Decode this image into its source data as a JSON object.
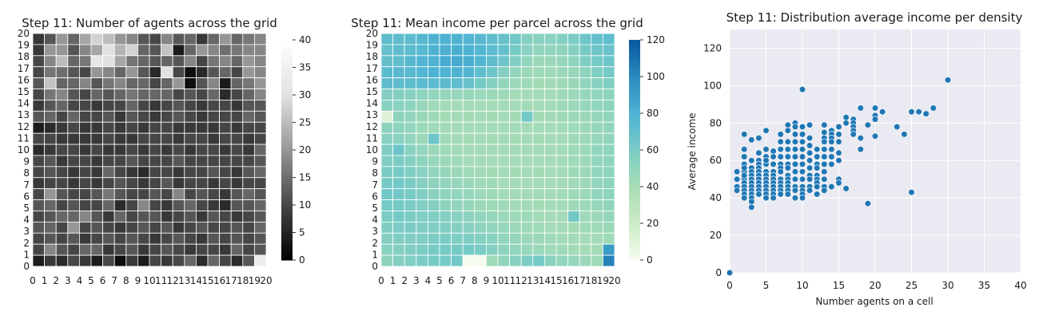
{
  "chart_data": [
    {
      "type": "heatmap",
      "title": "Step 11: Number of agents across the grid",
      "x_ticks": [
        "0",
        "1",
        "2",
        "3",
        "4",
        "5",
        "6",
        "7",
        "8",
        "9",
        "10",
        "11",
        "12",
        "13",
        "14",
        "15",
        "16",
        "17",
        "18",
        "19",
        "20"
      ],
      "y_ticks": [
        "0",
        "1",
        "2",
        "3",
        "4",
        "5",
        "6",
        "7",
        "8",
        "9",
        "10",
        "11",
        "12",
        "13",
        "14",
        "15",
        "16",
        "17",
        "18",
        "19",
        "20"
      ],
      "colormap": "greys",
      "colorbar_range": [
        0,
        40
      ],
      "colorbar_ticks": [
        "0",
        "5",
        "10",
        "15",
        "20",
        "25",
        "30",
        "35",
        "40"
      ],
      "rows_top_to_bottom": [
        [
          8,
          12,
          20,
          14,
          22,
          28,
          25,
          20,
          18,
          12,
          10,
          18,
          12,
          14,
          8,
          14,
          20,
          14,
          16,
          18
        ],
        [
          8,
          20,
          20,
          12,
          18,
          22,
          30,
          24,
          28,
          14,
          12,
          26,
          4,
          14,
          20,
          18,
          15,
          16,
          18,
          18
        ],
        [
          10,
          18,
          25,
          14,
          16,
          32,
          30,
          22,
          16,
          14,
          12,
          14,
          12,
          18,
          10,
          16,
          18,
          14,
          20,
          18
        ],
        [
          10,
          16,
          15,
          12,
          10,
          20,
          18,
          14,
          20,
          12,
          6,
          30,
          10,
          2,
          6,
          12,
          14,
          10,
          20,
          18
        ],
        [
          12,
          26,
          14,
          14,
          18,
          12,
          16,
          18,
          14,
          14,
          10,
          14,
          20,
          2,
          12,
          18,
          4,
          14,
          16,
          20
        ],
        [
          10,
          16,
          18,
          12,
          10,
          14,
          12,
          14,
          16,
          14,
          14,
          14,
          10,
          12,
          10,
          14,
          6,
          10,
          14,
          18
        ],
        [
          8,
          12,
          14,
          10,
          10,
          8,
          10,
          10,
          14,
          10,
          8,
          10,
          12,
          10,
          8,
          10,
          10,
          8,
          12,
          12
        ],
        [
          12,
          14,
          10,
          14,
          10,
          10,
          12,
          8,
          12,
          10,
          8,
          10,
          12,
          10,
          8,
          10,
          10,
          10,
          14,
          12
        ],
        [
          4,
          6,
          8,
          10,
          8,
          8,
          10,
          8,
          10,
          8,
          10,
          10,
          8,
          8,
          8,
          8,
          10,
          8,
          10,
          10
        ],
        [
          10,
          10,
          8,
          8,
          8,
          8,
          10,
          8,
          8,
          10,
          10,
          10,
          8,
          10,
          10,
          8,
          10,
          10,
          8,
          10
        ],
        [
          6,
          8,
          10,
          10,
          8,
          10,
          8,
          8,
          10,
          8,
          10,
          8,
          10,
          8,
          10,
          10,
          8,
          10,
          8,
          14
        ],
        [
          10,
          12,
          8,
          10,
          10,
          8,
          10,
          10,
          12,
          10,
          10,
          10,
          12,
          10,
          10,
          10,
          10,
          10,
          10,
          12
        ],
        [
          10,
          12,
          10,
          8,
          10,
          8,
          14,
          10,
          8,
          6,
          10,
          10,
          8,
          10,
          10,
          12,
          10,
          8,
          12,
          14
        ],
        [
          8,
          10,
          10,
          8,
          10,
          8,
          10,
          12,
          10,
          8,
          10,
          12,
          8,
          10,
          10,
          8,
          10,
          8,
          10,
          10
        ],
        [
          10,
          20,
          12,
          10,
          10,
          12,
          16,
          12,
          10,
          10,
          12,
          10,
          18,
          10,
          12,
          10,
          8,
          12,
          14,
          12
        ],
        [
          12,
          14,
          10,
          12,
          10,
          10,
          14,
          6,
          10,
          18,
          10,
          8,
          12,
          14,
          10,
          8,
          6,
          12,
          12,
          14
        ],
        [
          10,
          12,
          14,
          14,
          18,
          12,
          8,
          14,
          10,
          12,
          12,
          8,
          10,
          12,
          8,
          12,
          10,
          8,
          10,
          12
        ],
        [
          12,
          14,
          10,
          20,
          10,
          12,
          10,
          8,
          10,
          12,
          10,
          12,
          8,
          10,
          12,
          10,
          10,
          12,
          10,
          14
        ],
        [
          10,
          12,
          10,
          12,
          8,
          10,
          12,
          10,
          12,
          10,
          8,
          10,
          12,
          10,
          8,
          12,
          10,
          12,
          10,
          12
        ],
        [
          10,
          18,
          12,
          10,
          14,
          14,
          8,
          10,
          12,
          8,
          10,
          12,
          10,
          8,
          10,
          10,
          8,
          14,
          10,
          12
        ],
        [
          4,
          8,
          6,
          10,
          8,
          4,
          10,
          2,
          8,
          4,
          10,
          8,
          10,
          14,
          6,
          14,
          10,
          6,
          12,
          34
        ]
      ]
    },
    {
      "type": "heatmap",
      "title": "Step 11: Mean income per parcel across the grid",
      "x_ticks": [
        "0",
        "1",
        "2",
        "3",
        "4",
        "5",
        "6",
        "7",
        "8",
        "9",
        "10",
        "11",
        "12",
        "13",
        "14",
        "15",
        "16",
        "17",
        "18",
        "19",
        "20"
      ],
      "y_ticks": [
        "0",
        "1",
        "2",
        "3",
        "4",
        "5",
        "6",
        "7",
        "8",
        "9",
        "10",
        "11",
        "12",
        "13",
        "14",
        "15",
        "16",
        "17",
        "18",
        "19",
        "20"
      ],
      "colormap": "GnBu",
      "colorbar_range": [
        0,
        120
      ],
      "colorbar_ticks": [
        "0",
        "20",
        "40",
        "60",
        "80",
        "100",
        "120"
      ],
      "rows_top_to_bottom": [
        [
          72,
          72,
          74,
          76,
          80,
          80,
          80,
          78,
          76,
          72,
          70,
          64,
          56,
          54,
          54,
          56,
          60,
          66,
          70,
          72
        ],
        [
          70,
          72,
          74,
          76,
          80,
          82,
          82,
          80,
          78,
          74,
          70,
          62,
          54,
          50,
          50,
          52,
          56,
          62,
          66,
          68
        ],
        [
          70,
          72,
          76,
          78,
          80,
          84,
          84,
          82,
          78,
          72,
          66,
          58,
          50,
          46,
          46,
          48,
          52,
          58,
          62,
          66
        ],
        [
          74,
          76,
          76,
          78,
          80,
          80,
          80,
          78,
          72,
          66,
          56,
          50,
          46,
          44,
          44,
          46,
          48,
          52,
          58,
          62
        ],
        [
          72,
          72,
          72,
          74,
          74,
          74,
          72,
          68,
          62,
          56,
          50,
          46,
          44,
          42,
          42,
          44,
          46,
          50,
          54,
          58
        ],
        [
          56,
          56,
          54,
          52,
          50,
          48,
          48,
          48,
          46,
          46,
          44,
          42,
          42,
          42,
          42,
          44,
          46,
          48,
          50,
          52
        ],
        [
          54,
          54,
          52,
          48,
          44,
          42,
          42,
          42,
          42,
          42,
          42,
          42,
          42,
          42,
          42,
          44,
          46,
          48,
          50,
          52
        ],
        [
          12,
          52,
          50,
          46,
          44,
          42,
          42,
          42,
          42,
          42,
          42,
          42,
          62,
          42,
          42,
          44,
          46,
          46,
          48,
          50
        ],
        [
          52,
          52,
          50,
          46,
          44,
          42,
          42,
          42,
          42,
          42,
          42,
          42,
          42,
          42,
          42,
          42,
          44,
          46,
          48,
          50
        ],
        [
          54,
          54,
          50,
          46,
          66,
          44,
          42,
          42,
          42,
          42,
          42,
          42,
          42,
          42,
          42,
          42,
          44,
          46,
          48,
          50
        ],
        [
          58,
          66,
          54,
          50,
          46,
          44,
          42,
          42,
          42,
          42,
          42,
          42,
          42,
          42,
          42,
          42,
          44,
          46,
          50,
          52
        ],
        [
          58,
          60,
          56,
          52,
          48,
          46,
          44,
          42,
          42,
          42,
          42,
          42,
          42,
          42,
          42,
          42,
          44,
          46,
          50,
          52
        ],
        [
          60,
          62,
          58,
          54,
          50,
          48,
          46,
          44,
          42,
          42,
          42,
          42,
          42,
          42,
          42,
          42,
          44,
          46,
          50,
          52
        ],
        [
          62,
          64,
          60,
          56,
          52,
          50,
          48,
          46,
          44,
          44,
          42,
          42,
          42,
          42,
          42,
          42,
          44,
          46,
          50,
          52
        ],
        [
          64,
          64,
          62,
          58,
          54,
          52,
          50,
          48,
          46,
          44,
          42,
          42,
          42,
          42,
          42,
          42,
          44,
          46,
          50,
          52
        ],
        [
          62,
          62,
          60,
          58,
          56,
          52,
          50,
          48,
          46,
          44,
          44,
          42,
          42,
          42,
          42,
          42,
          44,
          46,
          48,
          50
        ],
        [
          60,
          62,
          60,
          58,
          58,
          56,
          54,
          52,
          50,
          48,
          46,
          44,
          44,
          42,
          42,
          42,
          64,
          44,
          46,
          48
        ],
        [
          58,
          60,
          60,
          58,
          58,
          58,
          56,
          54,
          52,
          50,
          48,
          46,
          44,
          44,
          42,
          42,
          42,
          44,
          44,
          46
        ],
        [
          56,
          58,
          58,
          58,
          60,
          60,
          58,
          58,
          56,
          54,
          50,
          48,
          46,
          46,
          44,
          42,
          42,
          42,
          42,
          44
        ],
        [
          54,
          56,
          58,
          60,
          62,
          62,
          62,
          62,
          60,
          56,
          52,
          50,
          48,
          46,
          44,
          44,
          42,
          42,
          42,
          92
        ],
        [
          52,
          56,
          58,
          60,
          62,
          62,
          64,
          0,
          0,
          44,
          50,
          54,
          60,
          62,
          54,
          50,
          48,
          46,
          44,
          104
        ]
      ]
    },
    {
      "type": "scatter",
      "title": "Step 11: Distribution average income per density",
      "xlabel": "Number agents on a cell",
      "ylabel": "Average income",
      "xlim": [
        0,
        40
      ],
      "ylim": [
        0,
        130
      ],
      "x_ticks": [
        "0",
        "5",
        "10",
        "15",
        "20",
        "25",
        "30",
        "35",
        "40"
      ],
      "y_ticks": [
        "0",
        "20",
        "40",
        "60",
        "80",
        "100",
        "120"
      ],
      "grid": true,
      "point_color": "#1f77b4",
      "x": [
        0,
        1,
        1,
        1,
        1,
        2,
        2,
        2,
        2,
        2,
        2,
        2,
        2,
        2,
        2,
        2,
        2,
        2,
        3,
        3,
        3,
        3,
        3,
        3,
        3,
        3,
        3,
        3,
        3,
        3,
        3,
        4,
        4,
        4,
        4,
        4,
        4,
        4,
        4,
        4,
        4,
        4,
        4,
        5,
        5,
        5,
        5,
        5,
        5,
        5,
        5,
        5,
        5,
        5,
        5,
        5,
        6,
        6,
        6,
        6,
        6,
        6,
        6,
        6,
        6,
        6,
        6,
        7,
        7,
        7,
        7,
        7,
        7,
        7,
        7,
        7,
        7,
        7,
        7,
        8,
        8,
        8,
        8,
        8,
        8,
        8,
        8,
        8,
        8,
        8,
        8,
        8,
        9,
        9,
        9,
        9,
        9,
        9,
        9,
        9,
        9,
        9,
        9,
        9,
        10,
        10,
        10,
        10,
        10,
        10,
        10,
        10,
        10,
        10,
        10,
        10,
        10,
        11,
        11,
        11,
        11,
        11,
        11,
        11,
        11,
        11,
        11,
        12,
        12,
        12,
        12,
        12,
        12,
        12,
        12,
        12,
        13,
        13,
        13,
        13,
        13,
        13,
        13,
        13,
        13,
        13,
        13,
        14,
        14,
        14,
        14,
        14,
        14,
        14,
        14,
        15,
        15,
        15,
        15,
        15,
        15,
        15,
        16,
        16,
        16,
        17,
        17,
        17,
        17,
        17,
        18,
        18,
        18,
        19,
        19,
        20,
        20,
        20,
        20,
        21,
        23,
        24,
        25,
        25,
        26,
        27,
        28,
        30
      ],
      "y": [
        0,
        54,
        50,
        46,
        44,
        74,
        66,
        62,
        58,
        54,
        50,
        48,
        46,
        44,
        42,
        40,
        56,
        52,
        71,
        60,
        56,
        54,
        52,
        50,
        48,
        46,
        44,
        42,
        40,
        38,
        35,
        72,
        64,
        60,
        58,
        56,
        54,
        52,
        50,
        48,
        46,
        44,
        42,
        76,
        66,
        62,
        58,
        54,
        52,
        50,
        48,
        46,
        44,
        42,
        40,
        60,
        65,
        62,
        58,
        54,
        52,
        50,
        48,
        46,
        44,
        42,
        40,
        74,
        70,
        66,
        62,
        58,
        56,
        54,
        50,
        48,
        46,
        44,
        42,
        79,
        76,
        70,
        66,
        62,
        58,
        56,
        52,
        50,
        48,
        46,
        44,
        42,
        80,
        78,
        74,
        70,
        66,
        62,
        58,
        54,
        50,
        46,
        44,
        40,
        98,
        78,
        74,
        70,
        66,
        62,
        58,
        54,
        50,
        46,
        44,
        42,
        40,
        79,
        72,
        68,
        64,
        60,
        56,
        52,
        50,
        46,
        44,
        66,
        62,
        58,
        56,
        52,
        50,
        48,
        46,
        42,
        79,
        75,
        72,
        70,
        66,
        62,
        58,
        54,
        50,
        46,
        44,
        76,
        74,
        72,
        70,
        66,
        62,
        58,
        46,
        78,
        74,
        70,
        64,
        60,
        50,
        48,
        83,
        80,
        45,
        82,
        80,
        78,
        76,
        74,
        88,
        72,
        66,
        79,
        37,
        88,
        84,
        82,
        73,
        86,
        78,
        74,
        86,
        43,
        86,
        85,
        88,
        103
      ]
    }
  ]
}
